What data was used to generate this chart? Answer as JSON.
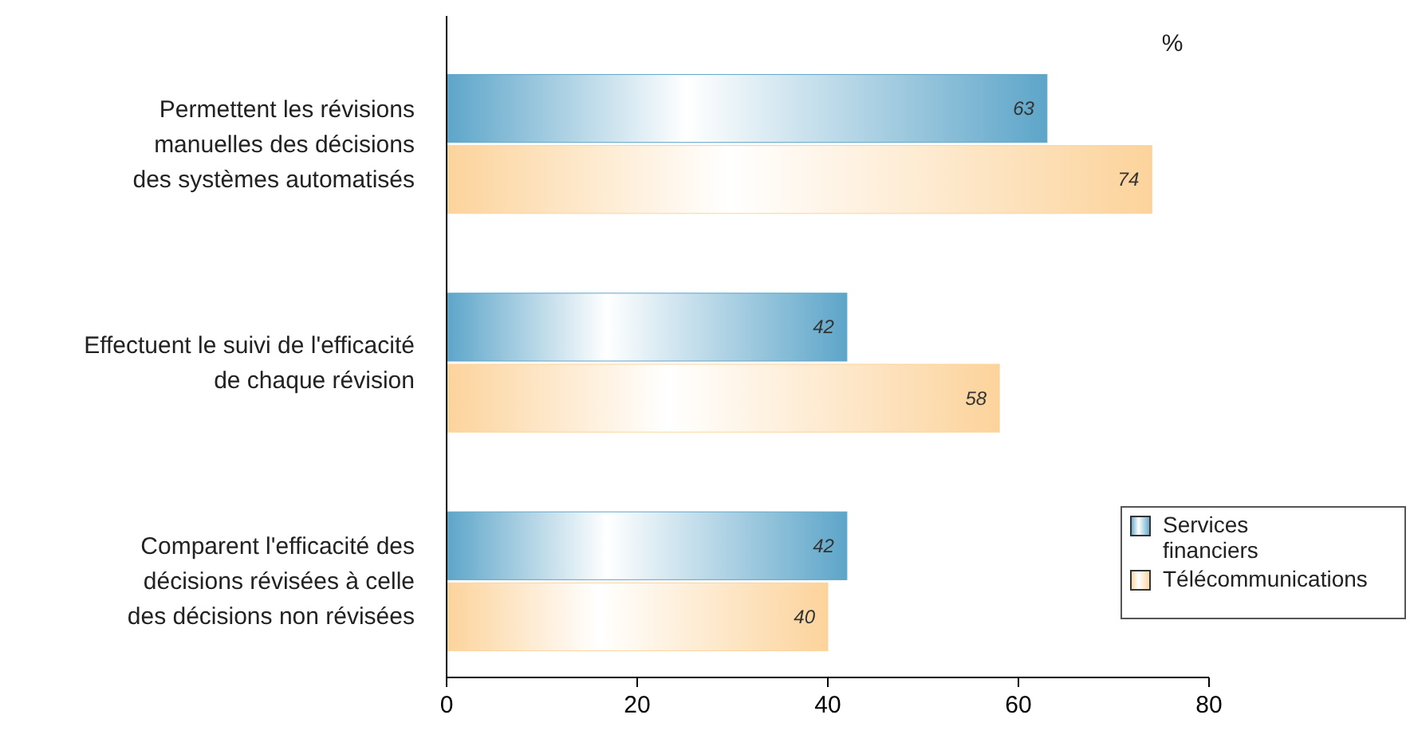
{
  "chart_data": {
    "type": "bar",
    "orientation": "horizontal",
    "xlabel": "%",
    "categories": [
      "Permettent les révisions\nmanuelles des décisions\ndes systèmes automatisés",
      "Effectuent le suivi de l'efficacité\nde chaque révision",
      "Comparent l'efficacité des\ndécisions révisées à celle\ndes décisions non révisées"
    ],
    "series": [
      {
        "name": "Services financiers",
        "color": "#5da5c9",
        "values": [
          63,
          42,
          42
        ]
      },
      {
        "name": "Télécommunications",
        "color": "#fcd39b",
        "values": [
          74,
          58,
          40
        ]
      }
    ],
    "xlim": [
      0,
      80
    ],
    "xticks": [
      0,
      20,
      40,
      60,
      80
    ],
    "data_labels": true,
    "legend": "bottom right",
    "grid": false
  }
}
